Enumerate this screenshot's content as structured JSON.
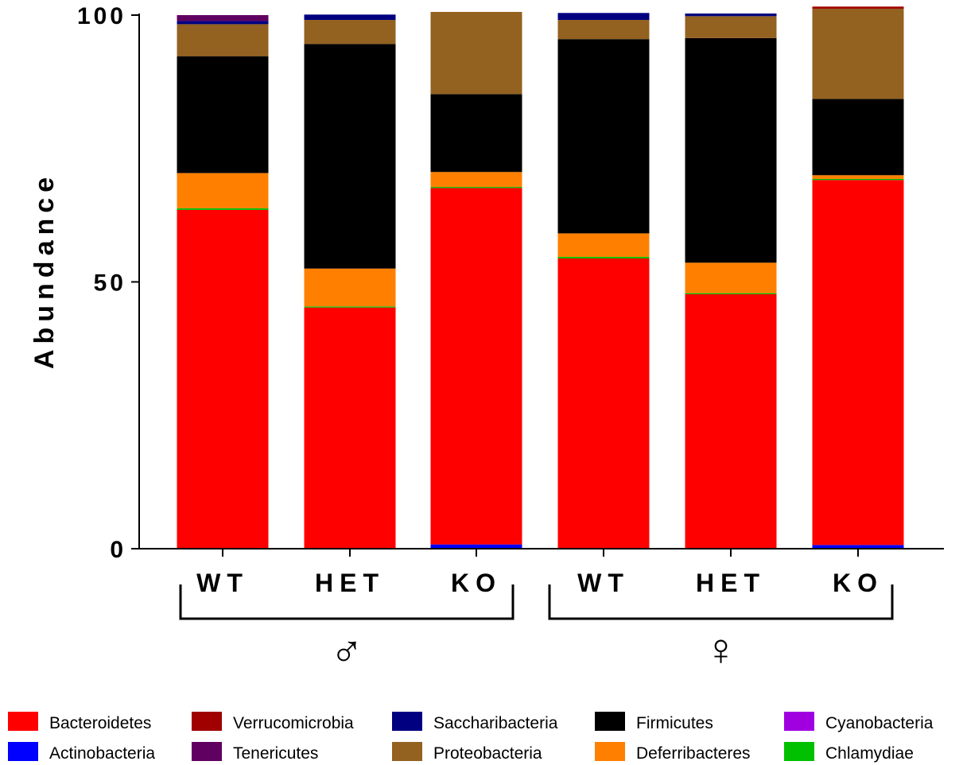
{
  "chart_data": {
    "type": "bar",
    "stacked": true,
    "title": "",
    "xlabel": "",
    "ylabel": "Abundance",
    "ylim": [
      0,
      100
    ],
    "yticks": [
      "0",
      "50",
      "100"
    ],
    "categories": [
      "WT",
      "HET",
      "KO",
      "WT",
      "HET",
      "KO"
    ],
    "groups": [
      {
        "label": "♂",
        "categories": [
          0,
          1,
          2
        ]
      },
      {
        "label": "♀",
        "categories": [
          3,
          4,
          5
        ]
      }
    ],
    "series": [
      {
        "name": "Actinobacteria",
        "color": "#0000FF",
        "values": [
          0.0,
          0.0,
          0.8,
          0.0,
          0.0,
          0.7
        ]
      },
      {
        "name": "Bacteroidetes",
        "color": "#FF0000",
        "values": [
          63.5,
          45.2,
          66.8,
          54.4,
          47.7,
          68.4
        ]
      },
      {
        "name": "Chlamydiae",
        "color": "#00C000",
        "values": [
          0.3,
          0.2,
          0.2,
          0.3,
          0.2,
          0.2
        ]
      },
      {
        "name": "Deferribacteres",
        "color": "#FF8000",
        "values": [
          6.6,
          7.1,
          2.8,
          4.4,
          5.7,
          0.7
        ]
      },
      {
        "name": "Firmicutes",
        "color": "#000000",
        "values": [
          21.9,
          42.1,
          14.6,
          36.4,
          42.1,
          14.3
        ]
      },
      {
        "name": "Proteobacteria",
        "color": "#936120",
        "values": [
          6.0,
          4.5,
          15.4,
          3.6,
          4.1,
          16.9
        ]
      },
      {
        "name": "Saccharibacteria",
        "color": "#000080",
        "values": [
          0.6,
          1.0,
          0.0,
          1.3,
          0.5,
          0.0
        ]
      },
      {
        "name": "Tenericutes",
        "color": "#600060",
        "values": [
          1.1,
          0.0,
          0.0,
          0.0,
          0.0,
          0.0
        ]
      },
      {
        "name": "Verrucomicrobia",
        "color": "#A00000",
        "values": [
          0.0,
          0.0,
          0.0,
          0.0,
          0.0,
          0.4
        ]
      },
      {
        "name": "Cyanobacteria",
        "color": "#A000E0",
        "values": [
          0,
          0,
          0,
          0,
          0,
          0
        ]
      }
    ],
    "legend": {
      "position": "bottom",
      "entries": [
        {
          "name": "Bacteroidetes",
          "color": "#FF0000"
        },
        {
          "name": "Verrucomicrobia",
          "color": "#A00000"
        },
        {
          "name": "Saccharibacteria",
          "color": "#000080"
        },
        {
          "name": "Firmicutes",
          "color": "#000000"
        },
        {
          "name": "Cyanobacteria",
          "color": "#A000E0"
        },
        {
          "name": "Actinobacteria",
          "color": "#0000FF"
        },
        {
          "name": "Tenericutes",
          "color": "#600060"
        },
        {
          "name": "Proteobacteria",
          "color": "#936120"
        },
        {
          "name": "Deferribacteres",
          "color": "#FF8000"
        },
        {
          "name": "Chlamydiae",
          "color": "#00C000"
        }
      ]
    },
    "grid": false
  }
}
